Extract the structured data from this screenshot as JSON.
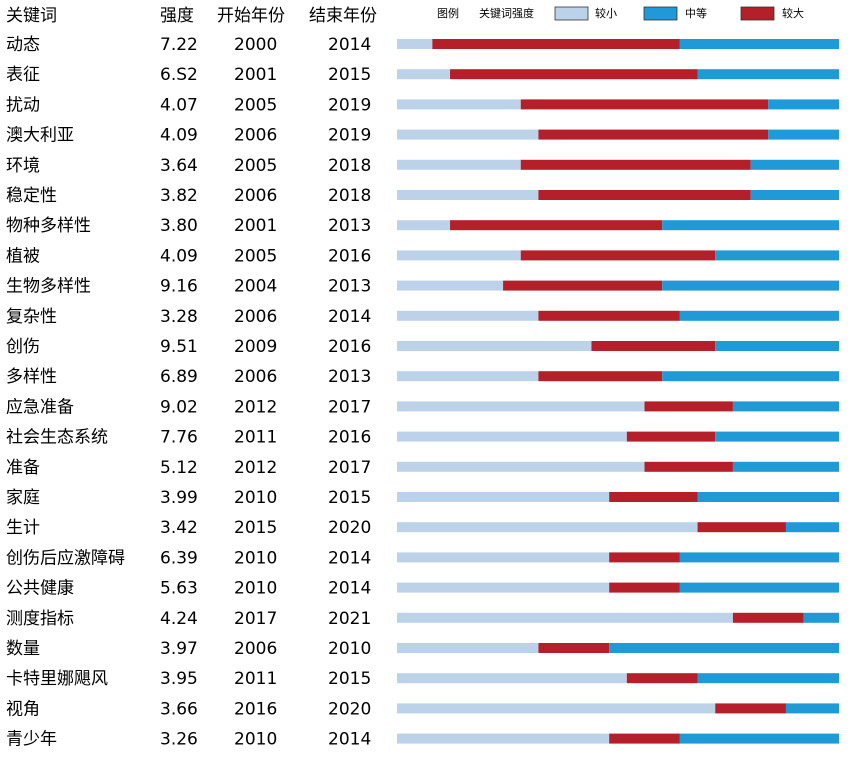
{
  "chart_data": {
    "type": "bar",
    "headers": {
      "keyword": "关键词",
      "strength": "强度",
      "begin": "开始年份",
      "end": "结束年份"
    },
    "legend": {
      "title": "图例",
      "subtitle": "关键词强度",
      "items": [
        {
          "label": "较小",
          "color": "#bcd2e8"
        },
        {
          "label": "中等",
          "color": "#1f9ad6"
        },
        {
          "label": "较大",
          "color": "#b51f2a"
        }
      ]
    },
    "timeline": {
      "start": 1998,
      "end": 2023
    },
    "colors": {
      "small": "#bcd2e8",
      "medium": "#1f9ad6",
      "large": "#b51f2a"
    },
    "rows": [
      {
        "keyword": "动态",
        "strength": "7.22",
        "begin": 2000,
        "end": 2014
      },
      {
        "keyword": "表征",
        "strength": "6.S2",
        "begin": 2001,
        "end": 2015
      },
      {
        "keyword": "扰动",
        "strength": "4.07",
        "begin": 2005,
        "end": 2019
      },
      {
        "keyword": "澳大利亚",
        "strength": "4.09",
        "begin": 2006,
        "end": 2019
      },
      {
        "keyword": "环境",
        "strength": "3.64",
        "begin": 2005,
        "end": 2018
      },
      {
        "keyword": "稳定性",
        "strength": "3.82",
        "begin": 2006,
        "end": 2018
      },
      {
        "keyword": "物种多样性",
        "strength": "3.80",
        "begin": 2001,
        "end": 2013
      },
      {
        "keyword": "植被",
        "strength": "4.09",
        "begin": 2005,
        "end": 2016
      },
      {
        "keyword": "生物多样性",
        "strength": "9.16",
        "begin": 2004,
        "end": 2013
      },
      {
        "keyword": "复杂性",
        "strength": "3.28",
        "begin": 2006,
        "end": 2014
      },
      {
        "keyword": "创伤",
        "strength": "9.51",
        "begin": 2009,
        "end": 2016
      },
      {
        "keyword": "多样性",
        "strength": "6.89",
        "begin": 2006,
        "end": 2013
      },
      {
        "keyword": "应急准备",
        "strength": "9.02",
        "begin": 2012,
        "end": 2017
      },
      {
        "keyword": "社会生态系统",
        "strength": "7.76",
        "begin": 2011,
        "end": 2016
      },
      {
        "keyword": "准备",
        "strength": "5.12",
        "begin": 2012,
        "end": 2017
      },
      {
        "keyword": "家庭",
        "strength": "3.99",
        "begin": 2010,
        "end": 2015
      },
      {
        "keyword": "生计",
        "strength": "3.42",
        "begin": 2015,
        "end": 2020
      },
      {
        "keyword": "创伤后应激障碍",
        "strength": "6.39",
        "begin": 2010,
        "end": 2014
      },
      {
        "keyword": "公共健康",
        "strength": "5.63",
        "begin": 2010,
        "end": 2014
      },
      {
        "keyword": "测度指标",
        "strength": "4.24",
        "begin": 2017,
        "end": 2021
      },
      {
        "keyword": "数量",
        "strength": "3.97",
        "begin": 2006,
        "end": 2010
      },
      {
        "keyword": "卡特里娜飓风",
        "strength": "3.95",
        "begin": 2011,
        "end": 2015
      },
      {
        "keyword": "视角",
        "strength": "3.66",
        "begin": 2016,
        "end": 2020
      },
      {
        "keyword": "青少年",
        "strength": "3.26",
        "begin": 2010,
        "end": 2014
      }
    ]
  }
}
